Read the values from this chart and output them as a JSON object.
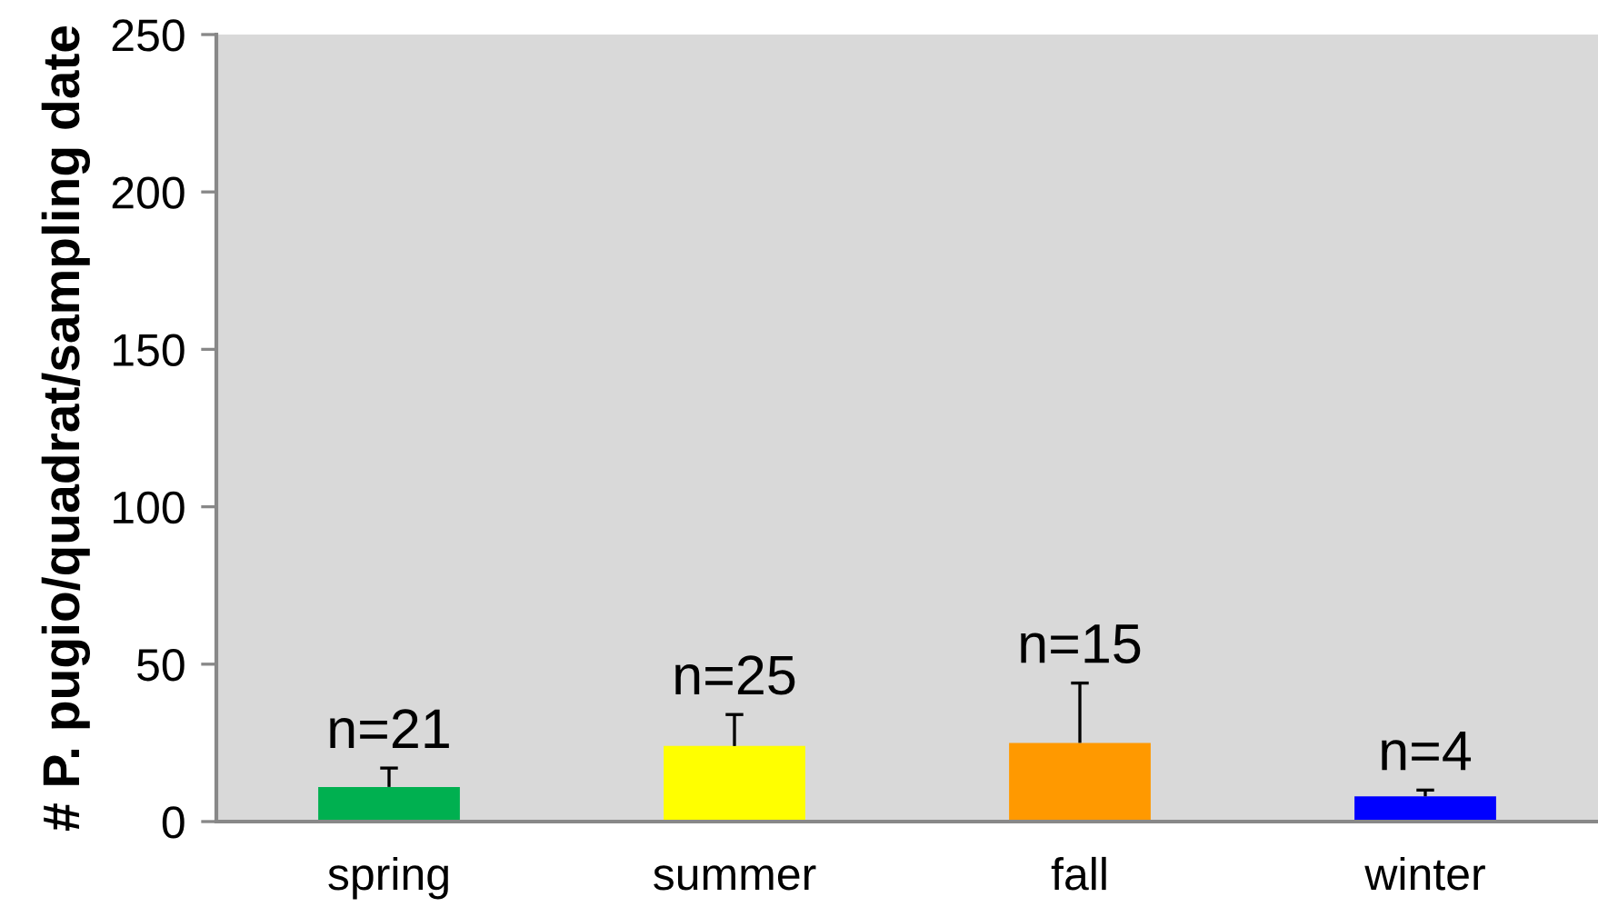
{
  "chart_data": {
    "type": "bar",
    "ylabel": "# P. pugio/quadrat/sampling date",
    "categories": [
      "spring",
      "summer",
      "fall",
      "winter"
    ],
    "values": [
      11,
      24,
      25,
      8
    ],
    "colors": [
      "#00b050",
      "#ffff00",
      "#ff9900",
      "#0000ff"
    ],
    "errors": [
      [
        11,
        17
      ],
      [
        24,
        34
      ],
      [
        25,
        44
      ],
      [
        8,
        10
      ]
    ],
    "annotations": [
      {
        "text": "n=21",
        "x": "spring",
        "y": 17
      },
      {
        "text": "n=25",
        "x": "summer",
        "y": 34
      },
      {
        "text": "n=15",
        "x": "fall",
        "y": 44
      },
      {
        "text": "n=4",
        "x": "winter",
        "y": 10
      }
    ],
    "ylim": [
      0,
      250
    ],
    "yticks": [
      0,
      50,
      100,
      150,
      200,
      250
    ]
  }
}
